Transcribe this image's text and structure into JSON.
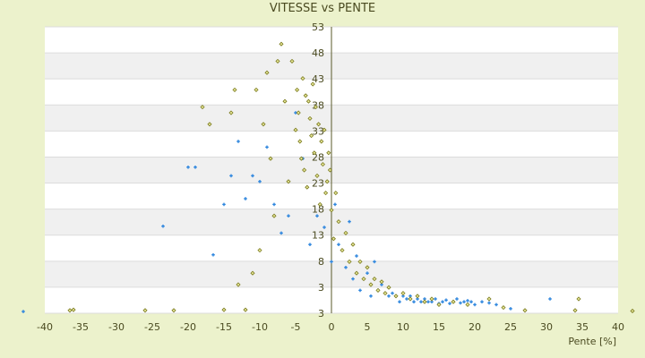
{
  "chart_data": {
    "type": "scatter",
    "title": "VITESSE vs PENTE",
    "xlabel": "Pente [%]",
    "ylabel": "",
    "xlim": [
      -40,
      40
    ],
    "ylim": [
      3,
      53
    ],
    "x_ticks": [
      "-40",
      "-35",
      "-30",
      "-25",
      "-20",
      "-15",
      "-10",
      "-5",
      "0",
      "5",
      "10",
      "15",
      "20",
      "25",
      "30",
      "35",
      "40"
    ],
    "y_ticks": [
      "3",
      "3",
      "8",
      "13",
      "18",
      "23",
      "28",
      "33",
      "38",
      "43",
      "48",
      "53"
    ],
    "band_color": "#f0f0f0",
    "plot_background": "#ffffff",
    "series": [
      {
        "color": "#2e86de",
        "marker": "plus",
        "points": [
          [
            -43,
            3.3
          ],
          [
            -23.5,
            18.2
          ],
          [
            -20,
            28.5
          ],
          [
            -19,
            28.5
          ],
          [
            -16.5,
            13.2
          ],
          [
            -15,
            22
          ],
          [
            -14,
            27
          ],
          [
            -13,
            33
          ],
          [
            -12,
            23
          ],
          [
            -11,
            27
          ],
          [
            -10,
            26
          ],
          [
            -9,
            32
          ],
          [
            -8,
            22
          ],
          [
            -7,
            17
          ],
          [
            -6,
            20
          ],
          [
            -5,
            38
          ],
          [
            -4,
            30
          ],
          [
            -3,
            15
          ],
          [
            -2,
            20
          ],
          [
            -1,
            18
          ],
          [
            0,
            12
          ],
          [
            0.5,
            22
          ],
          [
            1,
            15
          ],
          [
            2,
            11
          ],
          [
            2.5,
            19
          ],
          [
            3,
            9
          ],
          [
            3.5,
            13
          ],
          [
            4,
            7
          ],
          [
            5,
            10
          ],
          [
            5.5,
            6
          ],
          [
            6,
            12
          ],
          [
            6.5,
            7
          ],
          [
            7,
            8
          ],
          [
            8,
            6
          ],
          [
            8.5,
            6.5
          ],
          [
            9,
            6
          ],
          [
            9.5,
            5
          ],
          [
            10,
            6
          ],
          [
            10.5,
            5.5
          ],
          [
            11,
            6
          ],
          [
            11.5,
            5
          ],
          [
            12,
            5.5
          ],
          [
            12.5,
            5
          ],
          [
            13,
            5.5
          ],
          [
            13.5,
            5
          ],
          [
            14,
            5
          ],
          [
            14.5,
            5.5
          ],
          [
            15,
            4.7
          ],
          [
            15.5,
            5
          ],
          [
            16,
            5.3
          ],
          [
            16.5,
            4.7
          ],
          [
            17,
            5
          ],
          [
            17.5,
            5.5
          ],
          [
            18,
            4.8
          ],
          [
            18.5,
            5
          ],
          [
            19,
            5.2
          ],
          [
            19.5,
            5
          ],
          [
            20,
            4.5
          ],
          [
            21,
            5
          ],
          [
            22,
            4.8
          ],
          [
            23,
            4.5
          ],
          [
            25,
            3.8
          ],
          [
            30.5,
            5.5
          ]
        ]
      },
      {
        "color": "#7a7a1e",
        "marker": "diamond",
        "points": [
          [
            -36.5,
            3.5
          ],
          [
            -36,
            3.6
          ],
          [
            -26,
            3.5
          ],
          [
            -22,
            3.5
          ],
          [
            -18,
            39
          ],
          [
            -17,
            36
          ],
          [
            -15,
            3.6
          ],
          [
            -14,
            38
          ],
          [
            -13.5,
            42
          ],
          [
            -13,
            8
          ],
          [
            -12,
            3.6
          ],
          [
            -11,
            10
          ],
          [
            -10.5,
            42
          ],
          [
            -10,
            14
          ],
          [
            -9.5,
            36
          ],
          [
            -9,
            45
          ],
          [
            -8.5,
            30
          ],
          [
            -8,
            20
          ],
          [
            -7.5,
            47
          ],
          [
            -7,
            50
          ],
          [
            -6.5,
            40
          ],
          [
            -6,
            26
          ],
          [
            -5.5,
            47
          ],
          [
            -5,
            35
          ],
          [
            -4.8,
            42
          ],
          [
            -4.6,
            38
          ],
          [
            -4.4,
            33
          ],
          [
            -4.2,
            30
          ],
          [
            -4,
            44
          ],
          [
            -3.8,
            28
          ],
          [
            -3.6,
            41
          ],
          [
            -3.4,
            25
          ],
          [
            -3.2,
            40
          ],
          [
            -3,
            37
          ],
          [
            -2.8,
            34
          ],
          [
            -2.6,
            43
          ],
          [
            -2.4,
            31
          ],
          [
            -2.2,
            39
          ],
          [
            -2,
            27
          ],
          [
            -1.8,
            36
          ],
          [
            -1.6,
            22
          ],
          [
            -1.4,
            33
          ],
          [
            -1.2,
            29
          ],
          [
            -1,
            35
          ],
          [
            -0.8,
            24
          ],
          [
            -0.6,
            26
          ],
          [
            -0.4,
            31
          ],
          [
            -0.2,
            28
          ],
          [
            0,
            21
          ],
          [
            0.3,
            16
          ],
          [
            0.6,
            24
          ],
          [
            1,
            19
          ],
          [
            1.5,
            14
          ],
          [
            2,
            17
          ],
          [
            2.5,
            12
          ],
          [
            3,
            15
          ],
          [
            3.5,
            10
          ],
          [
            4,
            12
          ],
          [
            4.5,
            9
          ],
          [
            5,
            11
          ],
          [
            5.5,
            8
          ],
          [
            6,
            9
          ],
          [
            6.5,
            7
          ],
          [
            7,
            8.5
          ],
          [
            7.5,
            6.5
          ],
          [
            8,
            7.5
          ],
          [
            9,
            6
          ],
          [
            10,
            6.5
          ],
          [
            11,
            5.5
          ],
          [
            12,
            6
          ],
          [
            13,
            5
          ],
          [
            14,
            5.5
          ],
          [
            15,
            4.5
          ],
          [
            17,
            5
          ],
          [
            19,
            4.5
          ],
          [
            22,
            5.5
          ],
          [
            24,
            4
          ],
          [
            27,
            3.5
          ],
          [
            34,
            3.5
          ],
          [
            34.5,
            5.5
          ],
          [
            42,
            3.4
          ]
        ]
      }
    ]
  }
}
